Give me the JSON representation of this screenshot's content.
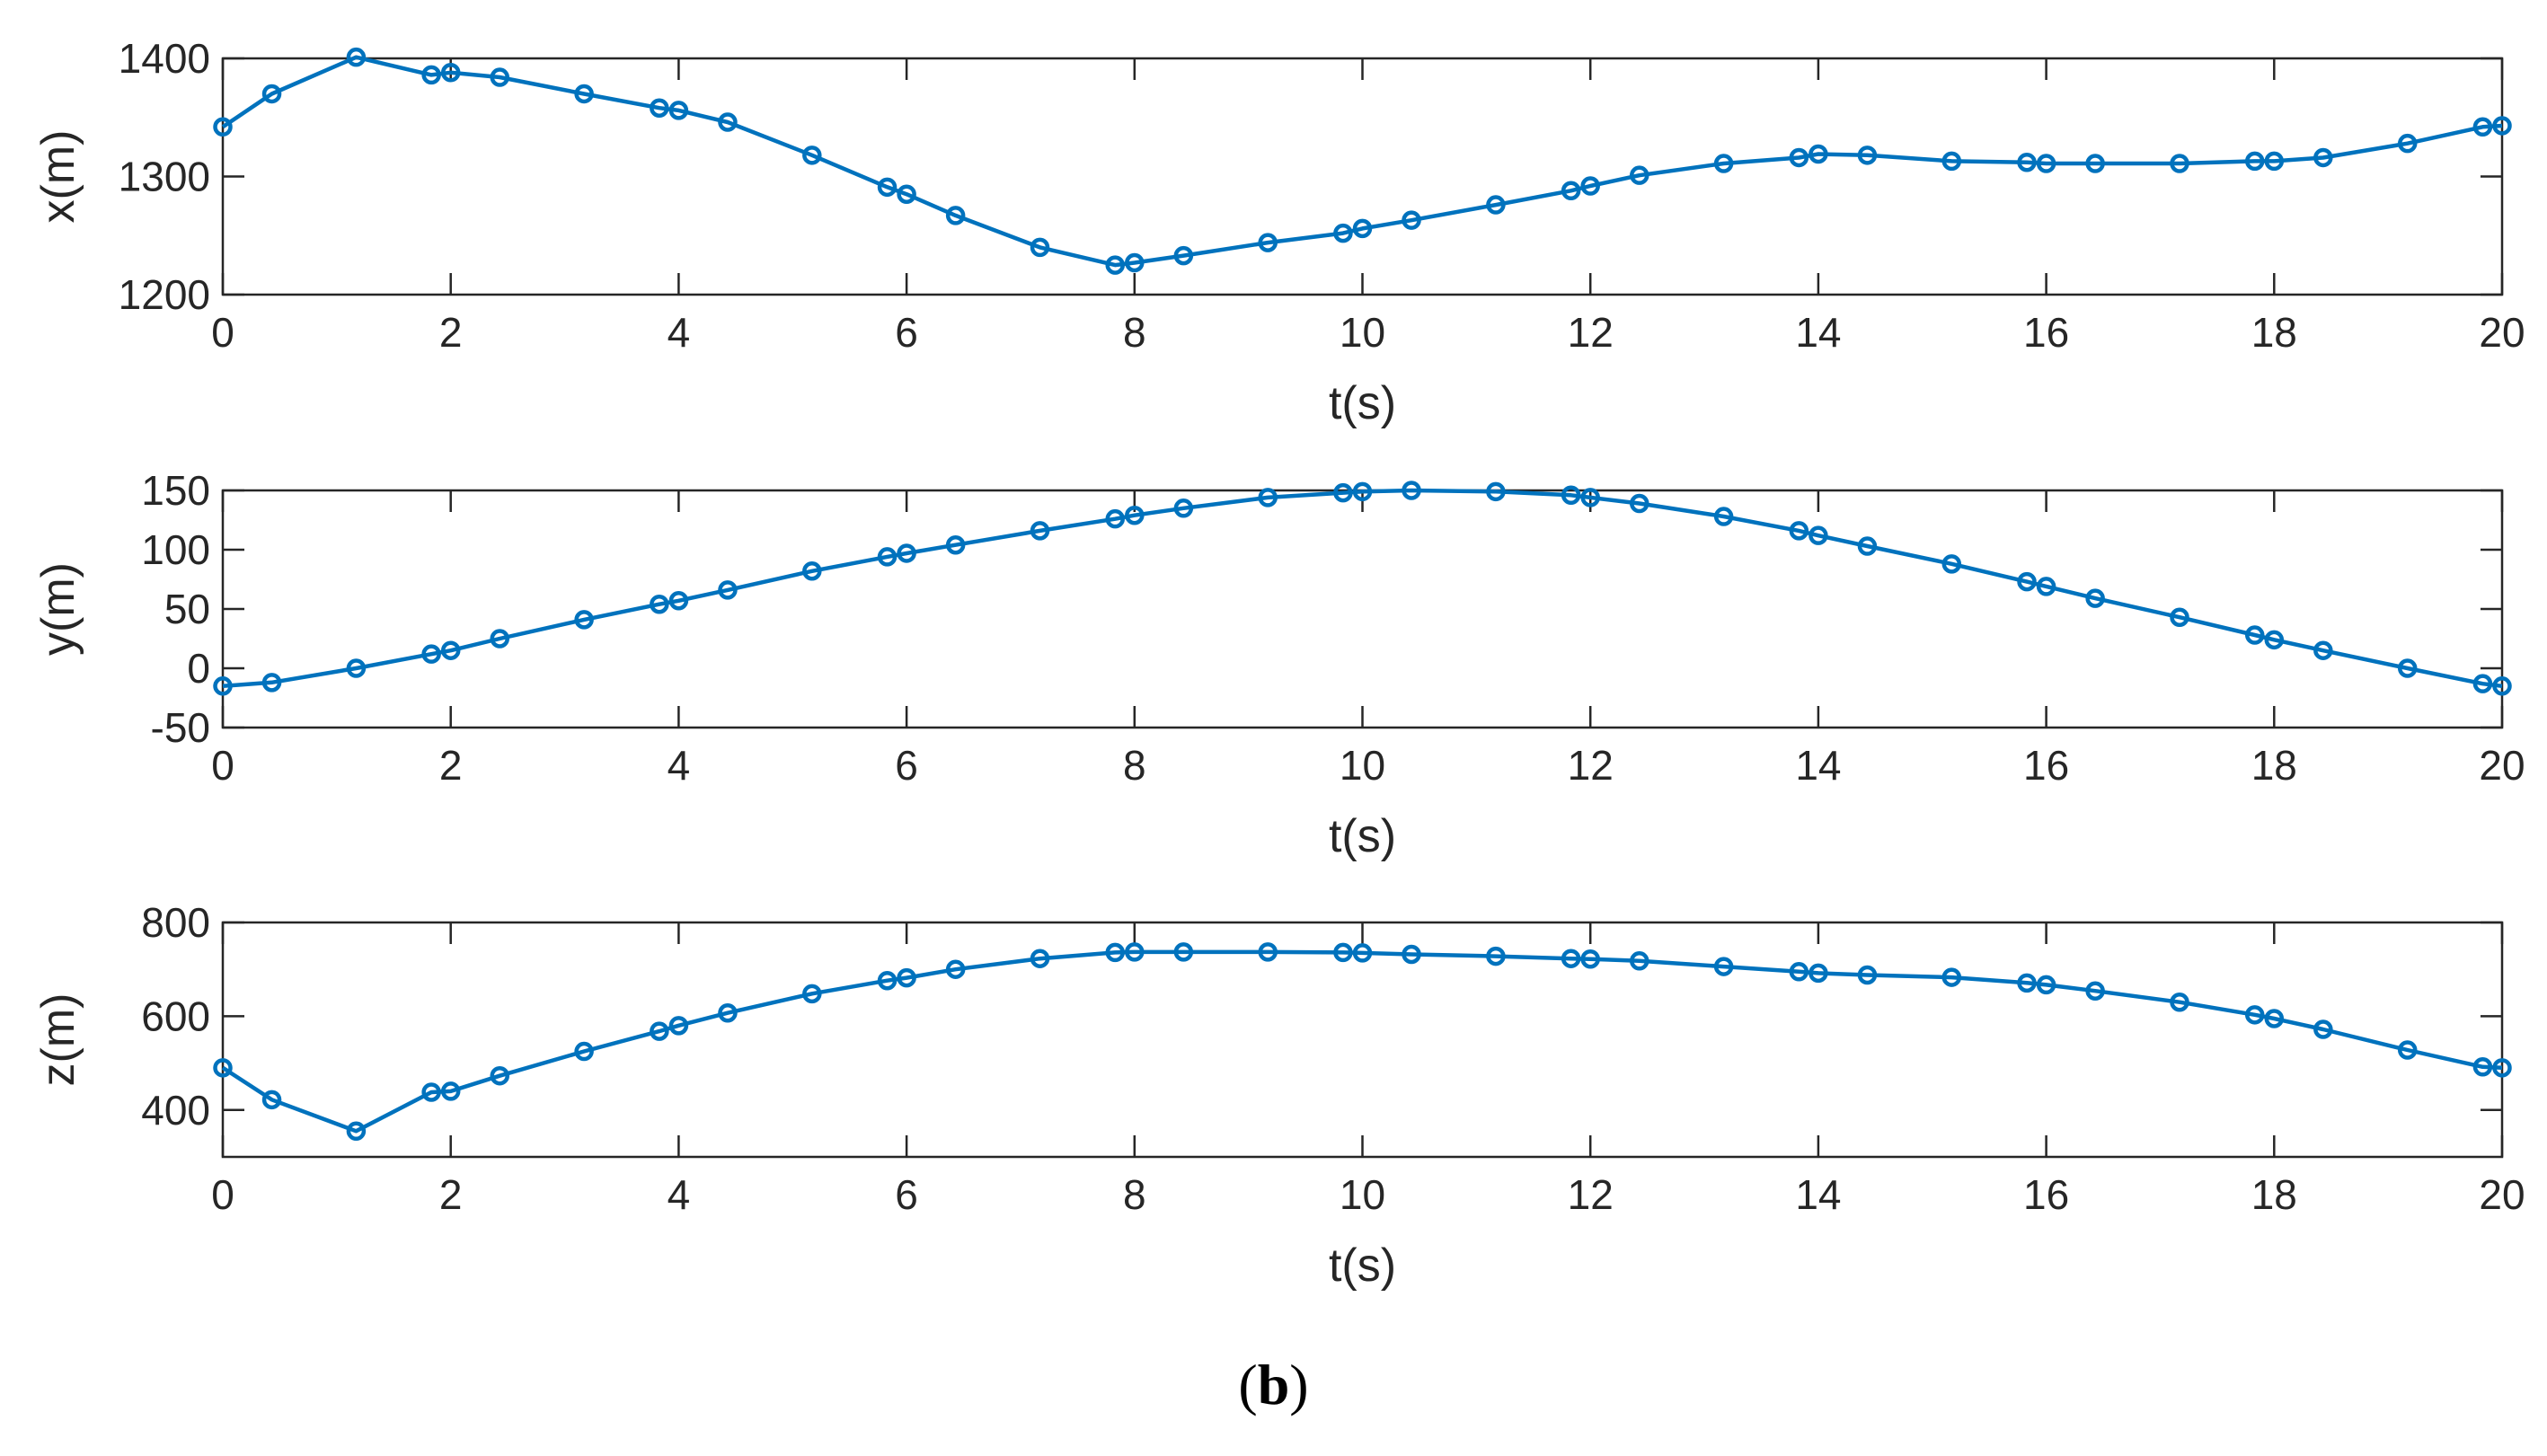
{
  "caption": {
    "open": "(",
    "letter": "b",
    "close": ")"
  },
  "style": {
    "line_color": "#0072BD",
    "axis_color": "#262626",
    "background": "#ffffff"
  },
  "chart_data": [
    {
      "type": "line",
      "title": "",
      "xlabel": "t(s)",
      "ylabel": "x(m)",
      "xlim": [
        0,
        20
      ],
      "ylim": [
        1200,
        1400
      ],
      "xticks": [
        0,
        2,
        4,
        6,
        8,
        10,
        12,
        14,
        16,
        18,
        20
      ],
      "yticks": [
        1200,
        1300,
        1400
      ],
      "marker": "circle",
      "series": [
        {
          "x": [
            0,
            0.43,
            1.17,
            1.83,
            2.0,
            2.43,
            3.17,
            3.83,
            4.0,
            4.43,
            5.17,
            5.83,
            6.0,
            6.43,
            7.17,
            7.83,
            8.0,
            8.43,
            9.17,
            9.83,
            10.0,
            10.43,
            11.17,
            11.83,
            12.0,
            12.43,
            13.17,
            13.83,
            14.0,
            14.43,
            15.17,
            15.83,
            16.0,
            16.43,
            17.17,
            17.83,
            18.0,
            18.43,
            19.17,
            19.83,
            20.0
          ],
          "y": [
            1342,
            1370,
            1401,
            1386,
            1388,
            1384,
            1370,
            1358,
            1356,
            1346,
            1318,
            1291,
            1285,
            1267,
            1240,
            1225,
            1227,
            1233,
            1244,
            1252,
            1256,
            1263,
            1276,
            1288,
            1292,
            1301,
            1311,
            1316,
            1319,
            1318,
            1313,
            1312,
            1311,
            1311,
            1311,
            1313,
            1313,
            1316,
            1328,
            1342,
            1343
          ]
        }
      ]
    },
    {
      "type": "line",
      "title": "",
      "xlabel": "t(s)",
      "ylabel": "y(m)",
      "xlim": [
        0,
        20
      ],
      "ylim": [
        -50,
        150
      ],
      "xticks": [
        0,
        2,
        4,
        6,
        8,
        10,
        12,
        14,
        16,
        18,
        20
      ],
      "yticks": [
        -50,
        0,
        50,
        100,
        150
      ],
      "marker": "circle",
      "series": [
        {
          "x": [
            0,
            0.43,
            1.17,
            1.83,
            2.0,
            2.43,
            3.17,
            3.83,
            4.0,
            4.43,
            5.17,
            5.83,
            6.0,
            6.43,
            7.17,
            7.83,
            8.0,
            8.43,
            9.17,
            9.83,
            10.0,
            10.43,
            11.17,
            11.83,
            12.0,
            12.43,
            13.17,
            13.83,
            14.0,
            14.43,
            15.17,
            15.83,
            16.0,
            16.43,
            17.17,
            17.83,
            18.0,
            18.43,
            19.17,
            19.83,
            20.0
          ],
          "y": [
            -15,
            -12,
            0,
            12,
            15,
            25,
            41,
            54,
            57,
            66,
            82,
            94,
            97,
            104,
            116,
            126,
            129,
            135,
            144,
            148,
            149,
            150,
            149,
            146,
            144,
            139,
            128,
            116,
            112,
            103,
            88,
            73,
            69,
            59,
            43,
            28,
            24,
            15,
            0,
            -13,
            -15
          ]
        }
      ]
    },
    {
      "type": "line",
      "title": "",
      "xlabel": "t(s)",
      "ylabel": "z(m)",
      "xlim": [
        0,
        20
      ],
      "ylim": [
        300,
        800
      ],
      "xticks": [
        0,
        2,
        4,
        6,
        8,
        10,
        12,
        14,
        16,
        18,
        20
      ],
      "yticks": [
        400,
        600,
        800
      ],
      "marker": "circle",
      "series": [
        {
          "x": [
            0,
            0.43,
            1.17,
            1.83,
            2.0,
            2.43,
            3.17,
            3.83,
            4.0,
            4.43,
            5.17,
            5.83,
            6.0,
            6.43,
            7.17,
            7.83,
            8.0,
            8.43,
            9.17,
            9.83,
            10.0,
            10.43,
            11.17,
            11.83,
            12.0,
            12.43,
            13.17,
            13.83,
            14.0,
            14.43,
            15.17,
            15.83,
            16.0,
            16.43,
            17.17,
            17.83,
            18.0,
            18.43,
            19.17,
            19.83,
            20.0
          ],
          "y": [
            490,
            422,
            355,
            438,
            440,
            473,
            525,
            568,
            580,
            607,
            648,
            676,
            682,
            700,
            723,
            736,
            737,
            737,
            737,
            736,
            735,
            732,
            728,
            723,
            722,
            718,
            706,
            695,
            692,
            688,
            683,
            671,
            667,
            654,
            630,
            603,
            595,
            572,
            528,
            492,
            490
          ]
        }
      ]
    }
  ]
}
